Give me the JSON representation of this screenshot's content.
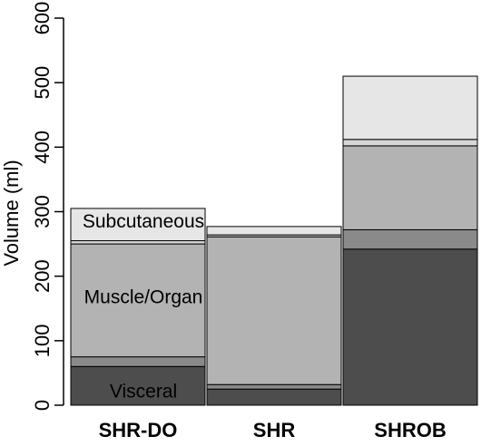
{
  "chart_data": {
    "type": "bar",
    "stacked": true,
    "title": "",
    "xlabel": "",
    "ylabel": "Volume (ml)",
    "ylim": [
      0,
      600
    ],
    "yticks": [
      0,
      100,
      200,
      300,
      400,
      500,
      600
    ],
    "categories": [
      "SHR-DO",
      "SHR",
      "SHROB"
    ],
    "grid": false,
    "legend": "none",
    "series": [
      {
        "color": "#4d4d4d",
        "values": [
          60,
          25,
          242
        ]
      },
      {
        "color": "#8a8a8a",
        "values": [
          15,
          7,
          30
        ]
      },
      {
        "color": "#b3b3b3",
        "values": [
          175,
          229,
          130
        ]
      },
      {
        "color": "#d6d6d6",
        "values": [
          5,
          3,
          10
        ]
      },
      {
        "color": "#e6e6e6",
        "values": [
          50,
          13,
          98
        ]
      }
    ],
    "annotations": [
      {
        "text": "Subcutaneous",
        "category": "SHR-DO",
        "y": 285,
        "color": "#000000"
      },
      {
        "text": "Muscle/Organ",
        "category": "SHR-DO",
        "y": 168,
        "color": "#000000"
      },
      {
        "text": "Visceral",
        "category": "SHR-DO",
        "y": 22,
        "color": "#ffffff"
      }
    ]
  }
}
